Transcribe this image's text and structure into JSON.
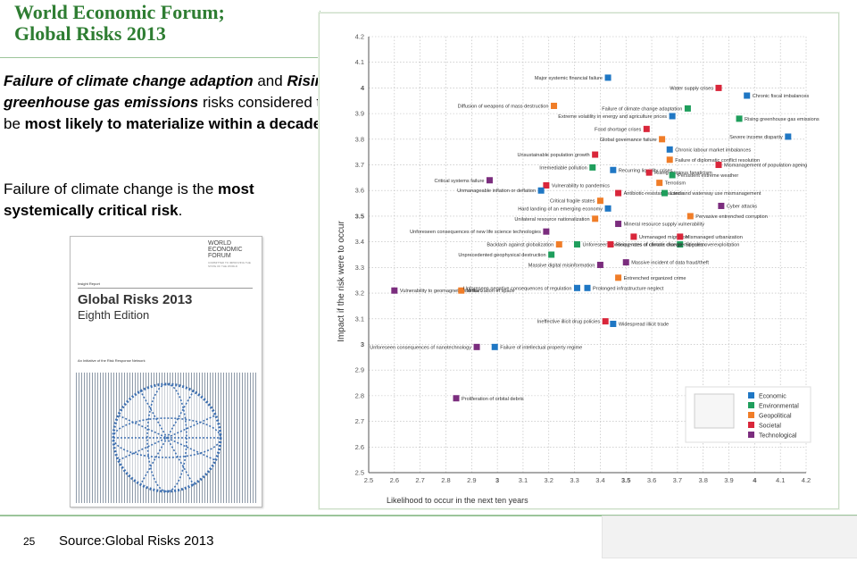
{
  "slide": {
    "title_line1": "World Economic Forum;",
    "title_line2": "Global Risks 2013",
    "para1": {
      "i1": "Failure of climate change adaption",
      "t1": " and ",
      "i2": "Rising greenhouse gas emissions",
      "t2": " risks considered to be ",
      "b1": "most likely to materialize within a decade",
      "t3": "."
    },
    "para2": {
      "t1": "Failure of climate change is the ",
      "b1": "most systemically critical risk",
      "t2": "."
    },
    "page_number": "25",
    "source": "Source:Global Risks 2013"
  },
  "cover": {
    "org_lines": [
      "WORLD",
      "ECONOMIC",
      "FORUM"
    ],
    "org_sub": "COMMITTED TO IMPROVING THE STATE OF THE WORLD",
    "insight": "Insight Report",
    "title": "Global Risks 2013",
    "edition": "Eighth Edition",
    "initiative": "An Initiative of the Risk Response Network"
  },
  "chart_data": {
    "type": "scatter",
    "xlabel": "Likelihood to occur in the next ten years",
    "ylabel": "Impact if the risk were to occur",
    "xlim": [
      2.5,
      4.2
    ],
    "ylim": [
      2.5,
      4.2
    ],
    "x_ticks": [
      "2.5",
      "2.6",
      "2.7",
      "2.8",
      "2.9",
      "3",
      "3.1",
      "3.2",
      "3.3",
      "3.4",
      "3.5",
      "3.6",
      "3.7",
      "3.8",
      "3.9",
      "4",
      "4.1",
      "4.2"
    ],
    "y_ticks": [
      "2.5",
      "2.6",
      "2.7",
      "2.8",
      "2.9",
      "3",
      "3.1",
      "3.2",
      "3.3",
      "3.4",
      "3.5",
      "3.6",
      "3.7",
      "3.8",
      "3.9",
      "4",
      "4.1",
      "4.2"
    ],
    "grid": true,
    "legend_position": "bottom-right",
    "categories": {
      "Economic": "#1f77c4",
      "Environmental": "#1f9e5c",
      "Geopolitical": "#f07d28",
      "Societal": "#d9263a",
      "Technological": "#7b2d7e"
    },
    "legend": [
      "Economic",
      "Environmental",
      "Geopolitical",
      "Societal",
      "Technological"
    ],
    "points": [
      {
        "label": "Major systemic financial failure",
        "x": 3.43,
        "y": 4.04,
        "cat": "Economic",
        "side": "left"
      },
      {
        "label": "Water supply crises",
        "x": 3.86,
        "y": 4.0,
        "cat": "Societal",
        "side": "left"
      },
      {
        "label": "Chronic fiscal imbalances",
        "x": 3.97,
        "y": 3.97,
        "cat": "Economic",
        "side": "right"
      },
      {
        "label": "Diffusion of weapons of mass destruction",
        "x": 3.22,
        "y": 3.93,
        "cat": "Geopolitical",
        "side": "left"
      },
      {
        "label": "Failure of climate change adaptation",
        "x": 3.74,
        "y": 3.92,
        "cat": "Environmental",
        "side": "left"
      },
      {
        "label": "Extreme volatility in energy and agriculture prices",
        "x": 3.68,
        "y": 3.89,
        "cat": "Economic",
        "side": "left"
      },
      {
        "label": "Rising greenhouse gas emissions",
        "x": 3.94,
        "y": 3.88,
        "cat": "Environmental",
        "side": "right"
      },
      {
        "label": "Food shortage crises",
        "x": 3.58,
        "y": 3.84,
        "cat": "Societal",
        "side": "left"
      },
      {
        "label": "Global governance failure",
        "x": 3.64,
        "y": 3.8,
        "cat": "Geopolitical",
        "side": "left"
      },
      {
        "label": "Severe income disparity",
        "x": 4.13,
        "y": 3.81,
        "cat": "Economic",
        "side": "left"
      },
      {
        "label": "Chronic labour market imbalances",
        "x": 3.67,
        "y": 3.76,
        "cat": "Economic",
        "side": "right"
      },
      {
        "label": "Unsustainable population growth",
        "x": 3.38,
        "y": 3.74,
        "cat": "Societal",
        "side": "left"
      },
      {
        "label": "Failure of diplomatic conflict resolution",
        "x": 3.67,
        "y": 3.72,
        "cat": "Geopolitical",
        "side": "right"
      },
      {
        "label": "Mismanagement of population ageing",
        "x": 3.86,
        "y": 3.7,
        "cat": "Societal",
        "side": "right"
      },
      {
        "label": "Irremediable pollution",
        "x": 3.37,
        "y": 3.69,
        "cat": "Environmental",
        "side": "left"
      },
      {
        "label": "Recurring liquidity crises",
        "x": 3.45,
        "y": 3.68,
        "cat": "Economic",
        "side": "right"
      },
      {
        "label": "Rising religious fanaticism",
        "x": 3.59,
        "y": 3.67,
        "cat": "Societal",
        "side": "right"
      },
      {
        "label": "Persistent extreme weather",
        "x": 3.68,
        "y": 3.66,
        "cat": "Environmental",
        "side": "right"
      },
      {
        "label": "Critical systems failure",
        "x": 2.97,
        "y": 3.64,
        "cat": "Technological",
        "side": "left"
      },
      {
        "label": "Vulnerability to pandemics",
        "x": 3.19,
        "y": 3.62,
        "cat": "Societal",
        "side": "right"
      },
      {
        "label": "Terrorism",
        "x": 3.63,
        "y": 3.63,
        "cat": "Geopolitical",
        "side": "right"
      },
      {
        "label": "Unmanageable inflation or deflation",
        "x": 3.17,
        "y": 3.6,
        "cat": "Economic",
        "side": "left"
      },
      {
        "label": "Antibiotic-resistant bacteria",
        "x": 3.47,
        "y": 3.59,
        "cat": "Societal",
        "side": "right"
      },
      {
        "label": "Land and waterway use mismanagement",
        "x": 3.65,
        "y": 3.59,
        "cat": "Environmental",
        "side": "right"
      },
      {
        "label": "Critical fragile states",
        "x": 3.4,
        "y": 3.56,
        "cat": "Geopolitical",
        "side": "left"
      },
      {
        "label": "Cyber attacks",
        "x": 3.87,
        "y": 3.54,
        "cat": "Technological",
        "side": "right"
      },
      {
        "label": "Hard landing of an emerging economy",
        "x": 3.43,
        "y": 3.53,
        "cat": "Economic",
        "side": "left"
      },
      {
        "label": "Pervasive entrenched corruption",
        "x": 3.75,
        "y": 3.5,
        "cat": "Geopolitical",
        "side": "right"
      },
      {
        "label": "Unilateral resource nationalization",
        "x": 3.38,
        "y": 3.49,
        "cat": "Geopolitical",
        "side": "left"
      },
      {
        "label": "Mineral resource supply vulnerability",
        "x": 3.47,
        "y": 3.47,
        "cat": "Technological",
        "side": "right"
      },
      {
        "label": "Unforeseen consequences of new life science technologies",
        "x": 3.19,
        "y": 3.44,
        "cat": "Technological",
        "side": "left"
      },
      {
        "label": "Unmanaged migration",
        "x": 3.53,
        "y": 3.42,
        "cat": "Societal",
        "side": "right"
      },
      {
        "label": "Mismanaged urbanization",
        "x": 3.71,
        "y": 3.42,
        "cat": "Societal",
        "side": "right"
      },
      {
        "label": "Species overexploitation",
        "x": 3.71,
        "y": 3.39,
        "cat": "Environmental",
        "side": "right"
      },
      {
        "label": "Backlash against globalization",
        "x": 3.24,
        "y": 3.39,
        "cat": "Geopolitical",
        "side": "left"
      },
      {
        "label": "Unforeseen consequences of climate change mitigation",
        "x": 3.31,
        "y": 3.39,
        "cat": "Environmental",
        "side": "right"
      },
      {
        "label": "Rising rates of chronic disease",
        "x": 3.44,
        "y": 3.39,
        "cat": "Societal",
        "side": "right"
      },
      {
        "label": "Unprecedented geophysical destruction",
        "x": 3.21,
        "y": 3.35,
        "cat": "Environmental",
        "side": "left"
      },
      {
        "label": "Massive incident of data fraud/theft",
        "x": 3.5,
        "y": 3.32,
        "cat": "Technological",
        "side": "right"
      },
      {
        "label": "Massive digital misinformation",
        "x": 3.4,
        "y": 3.31,
        "cat": "Technological",
        "side": "left"
      },
      {
        "label": "Entrenched organized crime",
        "x": 3.47,
        "y": 3.26,
        "cat": "Geopolitical",
        "side": "right"
      },
      {
        "label": "Vulnerability to geomagnetic storms",
        "x": 2.6,
        "y": 3.21,
        "cat": "Technological",
        "side": "right"
      },
      {
        "label": "Militarization of space",
        "x": 2.86,
        "y": 3.21,
        "cat": "Geopolitical",
        "side": "right"
      },
      {
        "label": "Unforeseen negative consequences of regulation",
        "x": 3.31,
        "y": 3.22,
        "cat": "Economic",
        "side": "left"
      },
      {
        "label": "Prolonged infrastructure neglect",
        "x": 3.35,
        "y": 3.22,
        "cat": "Economic",
        "side": "right"
      },
      {
        "label": "Ineffective illicit drug policies",
        "x": 3.42,
        "y": 3.09,
        "cat": "Societal",
        "side": "left"
      },
      {
        "label": "Widespread illicit trade",
        "x": 3.45,
        "y": 3.08,
        "cat": "Economic",
        "side": "right"
      },
      {
        "label": "Unforeseen consequences of nanotechnology",
        "x": 2.92,
        "y": 2.99,
        "cat": "Technological",
        "side": "left"
      },
      {
        "label": "Failure of intellectual property regime",
        "x": 2.99,
        "y": 2.99,
        "cat": "Economic",
        "side": "right"
      },
      {
        "label": "Proliferation of orbital debris",
        "x": 2.84,
        "y": 2.79,
        "cat": "Technological",
        "side": "right"
      }
    ]
  }
}
